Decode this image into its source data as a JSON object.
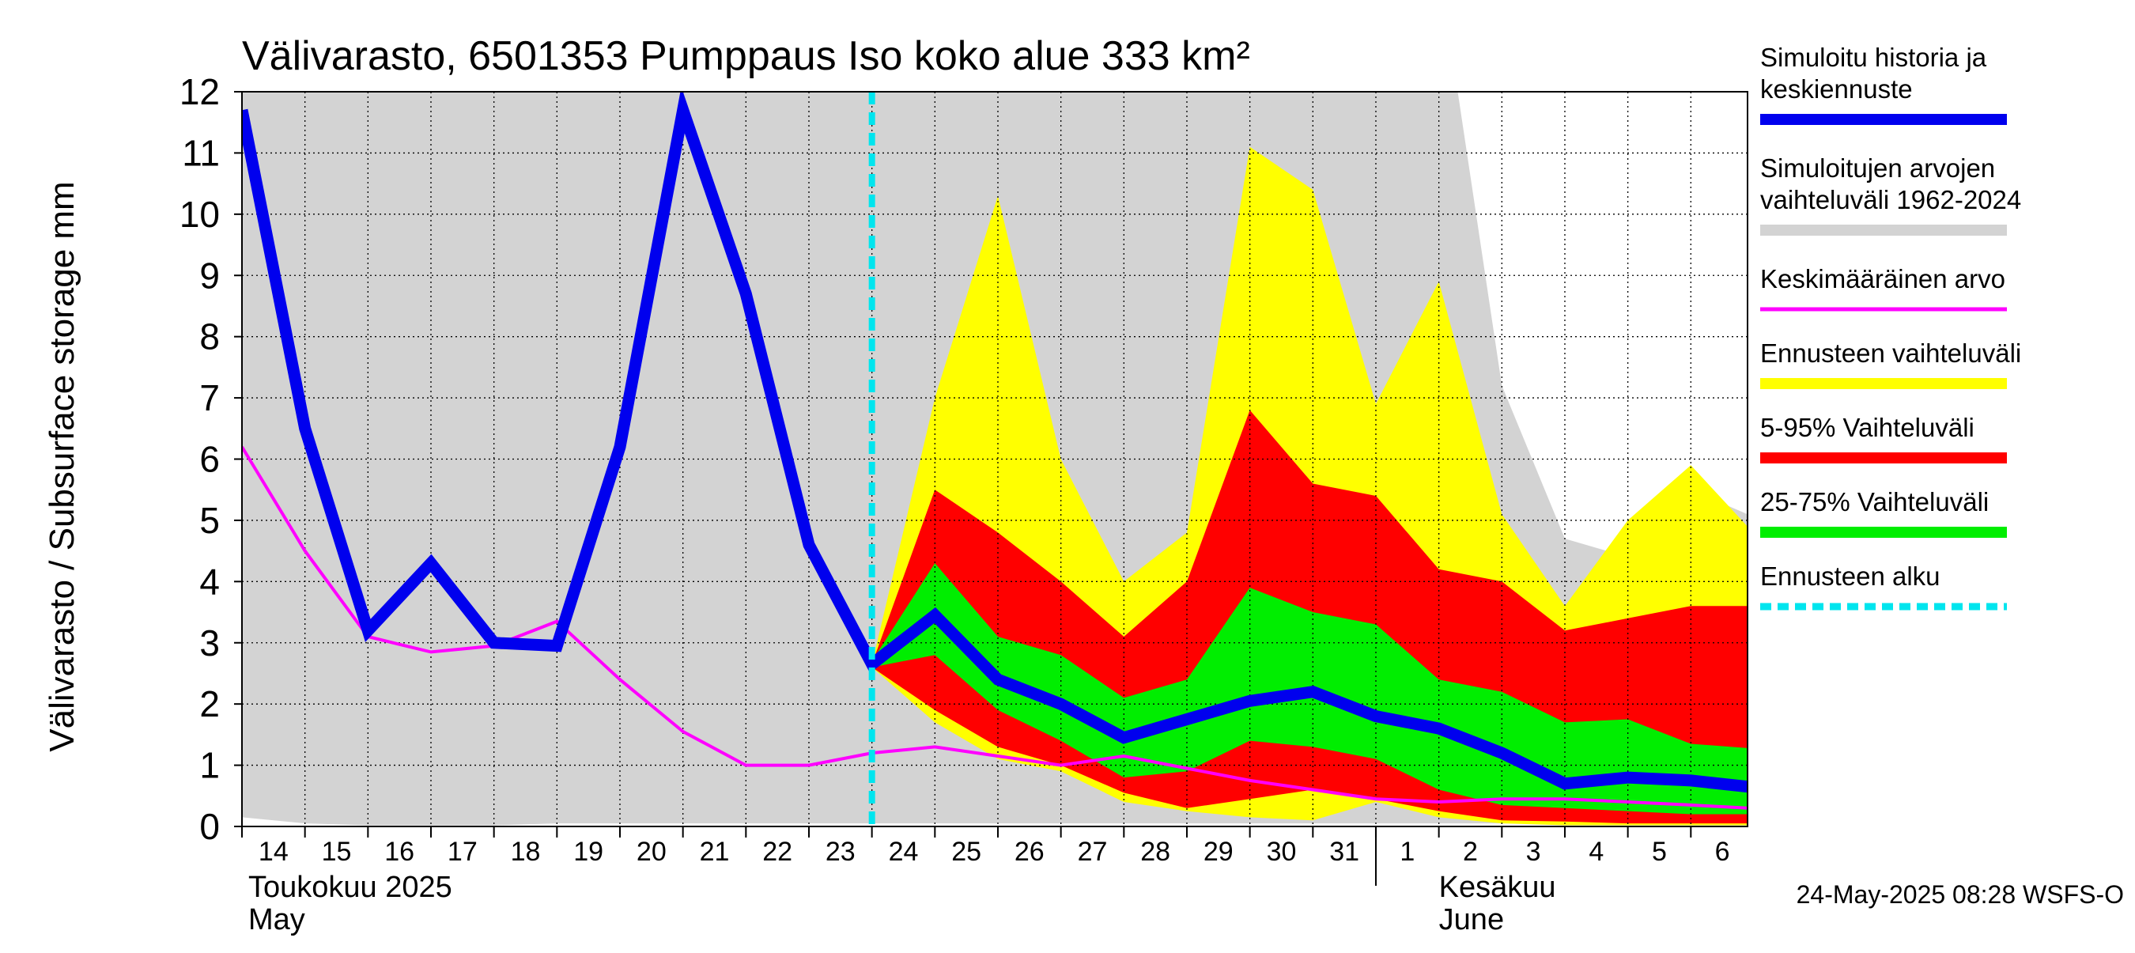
{
  "chart_data": {
    "type": "area",
    "title": "Välivarasto, 6501353 Pumppaus Iso koko alue 333 km²",
    "ylabel": "Välivarasto / Subsurface storage  mm",
    "ylim": [
      0,
      12
    ],
    "yticks": [
      0,
      1,
      2,
      3,
      4,
      5,
      6,
      7,
      8,
      9,
      10,
      11,
      12
    ],
    "xlim": [
      0,
      23.9
    ],
    "x_tick_labels": [
      "14",
      "15",
      "16",
      "17",
      "18",
      "19",
      "20",
      "21",
      "22",
      "23",
      "24",
      "25",
      "26",
      "27",
      "28",
      "29",
      "30",
      "31",
      "1",
      "2",
      "3",
      "4",
      "5",
      "6"
    ],
    "month_labels": [
      {
        "line1": "Toukokuu  2025",
        "line2": "May",
        "x": 0
      },
      {
        "line1": "Kesäkuu",
        "line2": "June",
        "x": 18.9
      }
    ],
    "month_divider_x": 18,
    "forecast_start_x": 10,
    "grid": true,
    "legend_position": "right",
    "timestamp": "24-May-2025 08:28 WSFS-O",
    "series": [
      {
        "name": "Simuloitujen arvojen vaihteluväli 1962-2024",
        "kind": "band",
        "color": "#d3d3d3",
        "x": [
          0,
          1,
          2,
          3,
          4,
          5,
          6,
          7,
          8,
          9,
          10,
          11,
          12,
          13,
          14,
          15,
          16,
          17,
          18,
          19,
          19.3,
          20,
          21,
          22,
          23,
          23.9
        ],
        "upper": [
          12,
          12,
          12,
          12,
          12,
          12,
          12,
          12,
          12,
          12,
          12,
          12,
          12,
          12,
          12,
          12,
          12,
          12,
          12,
          12,
          12,
          7.2,
          4.7,
          4.4,
          5.5,
          5.1
        ],
        "lower": [
          0.15,
          0.05,
          0.02,
          0.02,
          0.02,
          0.05,
          0.05,
          0.05,
          0.05,
          0.05,
          0.05,
          0.05,
          0.05,
          0.05,
          0.05,
          0.05,
          0.05,
          0.05,
          0.05,
          0.05,
          0.05,
          0.05,
          0.05,
          0.05,
          0.05,
          0.05
        ]
      },
      {
        "name": "Ennusteen vaihteluväli",
        "kind": "band",
        "color": "#ffff00",
        "x": [
          10,
          11,
          12,
          13,
          14,
          15,
          16,
          17,
          18,
          19,
          20,
          21,
          22,
          23,
          23.9
        ],
        "upper": [
          2.65,
          7.0,
          10.3,
          6.0,
          4.0,
          4.8,
          11.1,
          10.4,
          6.9,
          8.9,
          5.1,
          3.6,
          5.0,
          5.9,
          4.9
        ],
        "lower": [
          2.6,
          1.7,
          1.1,
          0.9,
          0.4,
          0.25,
          0.15,
          0.1,
          0.4,
          0.15,
          0.05,
          0.02,
          0.02,
          0.02,
          0.02
        ]
      },
      {
        "name": "5-95% Vaihteluväli",
        "kind": "band",
        "color": "#ff0000",
        "x": [
          10,
          11,
          12,
          13,
          14,
          15,
          16,
          17,
          18,
          19,
          20,
          21,
          22,
          23,
          23.9
        ],
        "upper": [
          2.65,
          5.5,
          4.8,
          4.0,
          3.1,
          4.0,
          6.8,
          5.6,
          5.4,
          4.2,
          4.0,
          3.2,
          3.4,
          3.6,
          3.6
        ],
        "lower": [
          2.6,
          1.9,
          1.3,
          1.0,
          0.55,
          0.3,
          0.45,
          0.6,
          0.45,
          0.25,
          0.1,
          0.08,
          0.05,
          0.05,
          0.05
        ]
      },
      {
        "name": "25-75% Vaihteluväli",
        "kind": "band",
        "color": "#00ee00",
        "x": [
          10,
          11,
          12,
          13,
          14,
          15,
          16,
          17,
          18,
          19,
          20,
          21,
          22,
          23,
          23.9
        ],
        "upper": [
          2.7,
          4.3,
          3.1,
          2.8,
          2.1,
          2.4,
          3.9,
          3.5,
          3.3,
          2.4,
          2.2,
          1.7,
          1.75,
          1.35,
          1.28
        ],
        "lower": [
          2.6,
          2.8,
          1.9,
          1.4,
          0.8,
          0.9,
          1.4,
          1.3,
          1.1,
          0.6,
          0.35,
          0.3,
          0.25,
          0.2,
          0.2
        ]
      },
      {
        "name": "Keskimääräinen arvo",
        "kind": "line",
        "color": "#ff00ff",
        "x": [
          0,
          1,
          2,
          3,
          4,
          5,
          6,
          7,
          8,
          9,
          10,
          11,
          12,
          13,
          14,
          15,
          16,
          17,
          18,
          19,
          20,
          21,
          22,
          23,
          23.9
        ],
        "values": [
          6.2,
          4.5,
          3.1,
          2.85,
          2.95,
          3.35,
          2.4,
          1.55,
          1.0,
          1.0,
          1.2,
          1.3,
          1.15,
          1.0,
          1.15,
          0.95,
          0.75,
          0.6,
          0.45,
          0.4,
          0.45,
          0.45,
          0.4,
          0.35,
          0.3
        ]
      },
      {
        "name": "Simuloitu historia ja keskiennuste",
        "kind": "line",
        "color": "#0000ee",
        "x": [
          0,
          1,
          2,
          3,
          4,
          5,
          6,
          7,
          8,
          9,
          10,
          11,
          12,
          13,
          14,
          15,
          16,
          17,
          18,
          19,
          20,
          21,
          22,
          23,
          23.9
        ],
        "values": [
          11.7,
          6.5,
          3.2,
          4.3,
          3.0,
          2.95,
          6.2,
          11.7,
          8.7,
          4.6,
          2.65,
          3.45,
          2.4,
          2.0,
          1.45,
          1.75,
          2.05,
          2.2,
          1.8,
          1.6,
          1.2,
          0.7,
          0.8,
          0.75,
          0.65
        ]
      }
    ]
  },
  "legend": {
    "items": [
      {
        "lines": [
          "Simuloitu historia ja",
          "keskiennuste"
        ],
        "color": "#0000ee",
        "style": "thick"
      },
      {
        "lines": [
          "Simuloitujen arvojen",
          "vaihteluväli 1962-2024"
        ],
        "color": "#d3d3d3",
        "style": "thick"
      },
      {
        "lines": [
          "Keskimääräinen arvo"
        ],
        "color": "#ff00ff",
        "style": "thin"
      },
      {
        "lines": [
          "Ennusteen vaihteluväli"
        ],
        "color": "#ffff00",
        "style": "thick"
      },
      {
        "lines": [
          "5-95% Vaihteluväli"
        ],
        "color": "#ff0000",
        "style": "thick"
      },
      {
        "lines": [
          "25-75% Vaihteluväli"
        ],
        "color": "#00ee00",
        "style": "thick"
      },
      {
        "lines": [
          "Ennusteen alku"
        ],
        "color": "#00e5ee",
        "style": "dashed"
      }
    ]
  }
}
